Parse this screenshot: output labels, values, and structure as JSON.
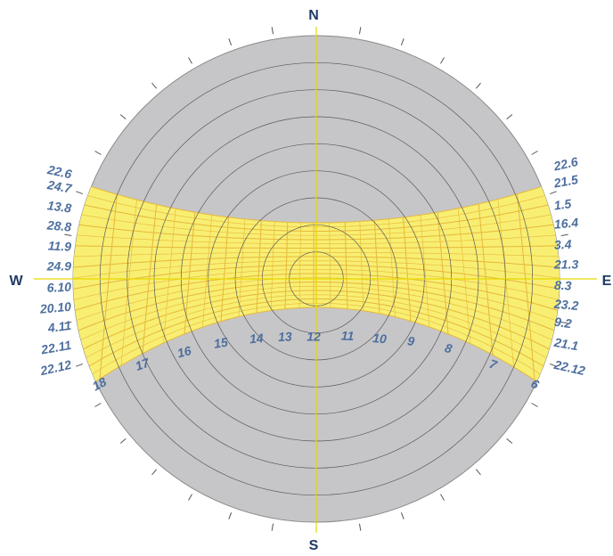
{
  "compass": {
    "north": "N",
    "south": "S",
    "west": "W",
    "east": "E"
  },
  "date_labels_left": [
    "22.6",
    "24.7",
    "13.8",
    "28.8",
    "11.9",
    "24.9",
    "6.10",
    "20.10",
    "4.11",
    "22.11",
    "22.12"
  ],
  "date_labels_right": [
    "22.6",
    "21.5",
    "1.5",
    "16.4",
    "3.4",
    "21.3",
    "8.3",
    "23.2",
    "9.2",
    "21.1",
    "22.12"
  ],
  "hour_labels": [
    "6",
    "7",
    "8",
    "9",
    "10",
    "11",
    "12",
    "13",
    "14",
    "15",
    "16",
    "17",
    "18"
  ]
}
